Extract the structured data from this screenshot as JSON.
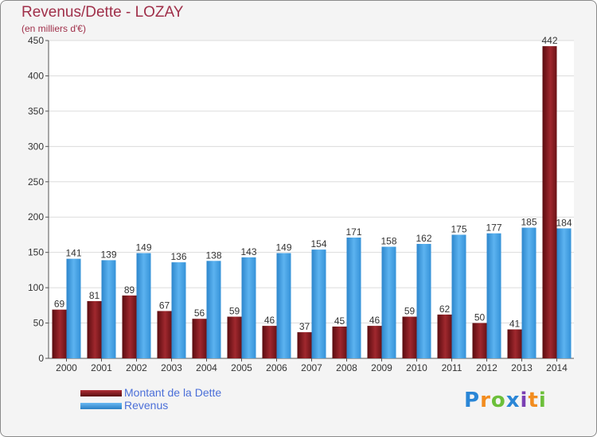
{
  "chart_data": {
    "type": "bar",
    "title": "Revenus/Dette - LOZAY",
    "subtitle": "(en milliers d'€)",
    "categories": [
      "2000",
      "2001",
      "2002",
      "2003",
      "2004",
      "2005",
      "2006",
      "2007",
      "2008",
      "2009",
      "2010",
      "2011",
      "2012",
      "2013",
      "2014"
    ],
    "series": [
      {
        "name": "Montant de la Dette",
        "values": [
          69,
          81,
          89,
          67,
          56,
          59,
          46,
          37,
          45,
          46,
          59,
          62,
          50,
          41,
          442
        ],
        "color": "#7a1a1c"
      },
      {
        "name": "Revenus",
        "values": [
          141,
          139,
          149,
          136,
          138,
          143,
          149,
          154,
          171,
          158,
          162,
          175,
          177,
          185,
          184
        ],
        "color": "#4aa3e6"
      }
    ],
    "ylim": [
      0,
      450
    ],
    "yticks": [
      0,
      50,
      100,
      150,
      200,
      250,
      300,
      350,
      400,
      450
    ],
    "grid": true,
    "legend_position": "bottom-left"
  },
  "logo": {
    "text": "Proxiti",
    "letters": [
      "P",
      "r",
      "o",
      "x",
      "i",
      "t",
      "i"
    ],
    "colors": [
      "#2a86d6",
      "#f28c1e",
      "#6cbf3a",
      "#2a86d6",
      "#7a3fb3",
      "#f28c1e",
      "#6cbf3a"
    ]
  }
}
